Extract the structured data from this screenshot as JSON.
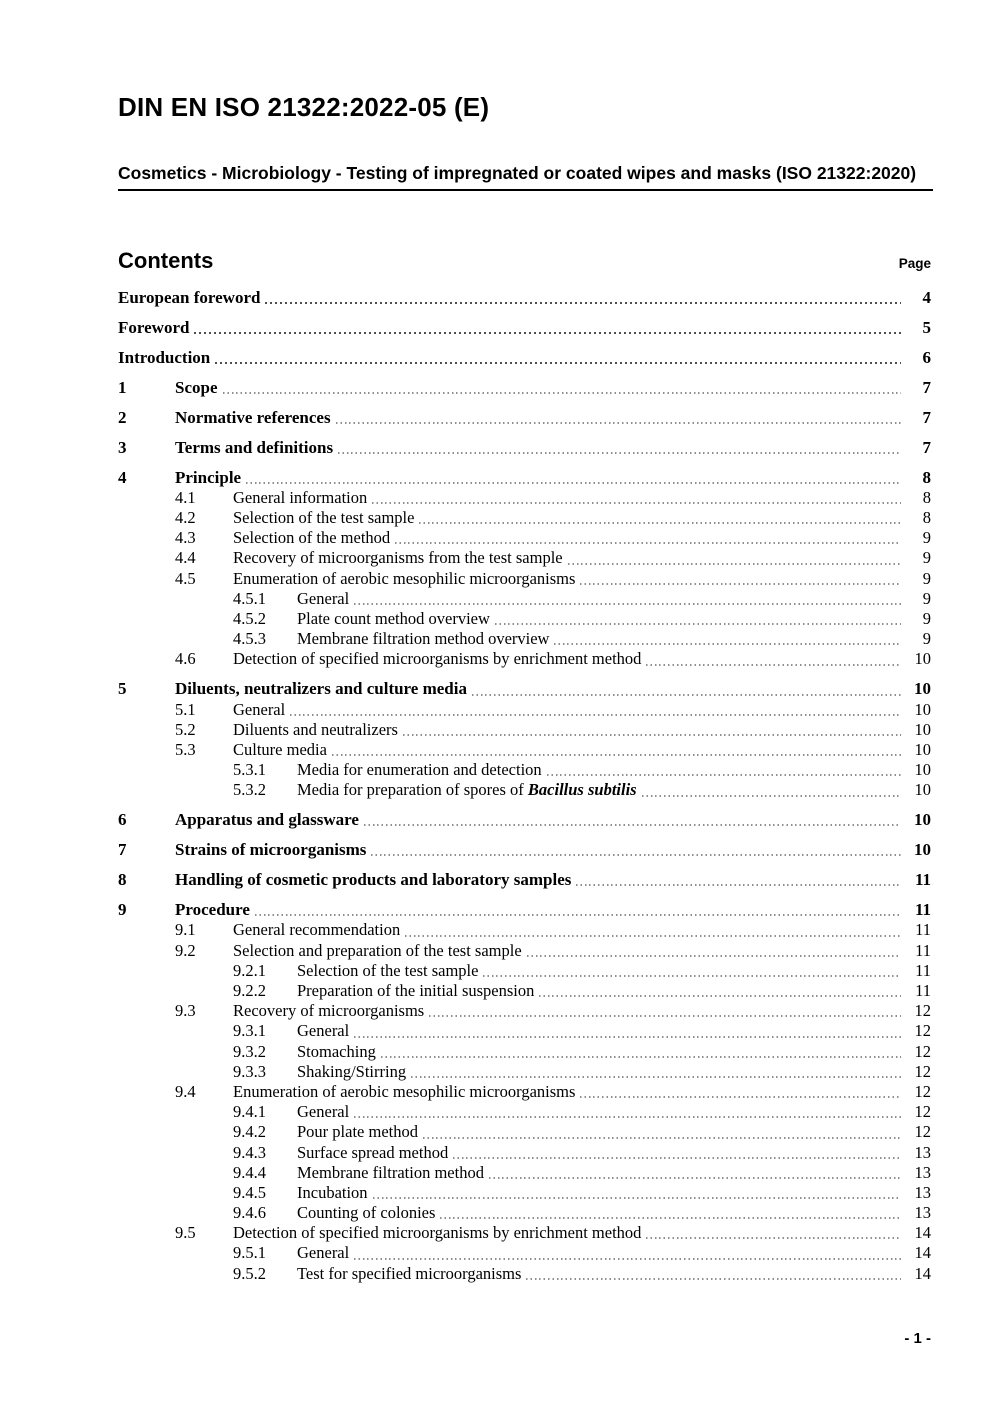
{
  "document": {
    "title": "DIN EN ISO 21322:2022-05 (E)",
    "subtitle": "Cosmetics - Microbiology - Testing of impregnated or coated wipes and masks (ISO 21322:2020)",
    "footer_page_number": "- 1 -"
  },
  "contents": {
    "heading": "Contents",
    "page_column_label": "Page",
    "entries": [
      {
        "style": "front",
        "level": 1,
        "num": "",
        "title": "European foreword",
        "page": "4"
      },
      {
        "style": "front",
        "level": 1,
        "num": "",
        "title": "Foreword",
        "page": "5"
      },
      {
        "style": "front",
        "level": 1,
        "num": "",
        "title": "Introduction",
        "page": "6"
      },
      {
        "style": "chapter",
        "level": 1,
        "num": "1",
        "title": "Scope",
        "page": "7"
      },
      {
        "style": "chapter",
        "level": 1,
        "num": "2",
        "title": "Normative references",
        "page": "7"
      },
      {
        "style": "chapter",
        "level": 1,
        "num": "3",
        "title": "Terms and definitions",
        "page": "7"
      },
      {
        "style": "chapter",
        "level": 1,
        "num": "4",
        "title": "Principle",
        "page": "8"
      },
      {
        "style": "sub",
        "level": 2,
        "num": "4.1",
        "title": "General information",
        "page": "8"
      },
      {
        "style": "sub",
        "level": 2,
        "num": "4.2",
        "title": "Selection of the test sample",
        "page": "8"
      },
      {
        "style": "sub",
        "level": 2,
        "num": "4.3",
        "title": "Selection of the method",
        "page": "9"
      },
      {
        "style": "sub",
        "level": 2,
        "num": "4.4",
        "title": "Recovery of microorganisms from the test sample",
        "page": "9"
      },
      {
        "style": "sub",
        "level": 2,
        "num": "4.5",
        "title": "Enumeration of aerobic mesophilic microorganisms",
        "page": "9"
      },
      {
        "style": "sub",
        "level": 3,
        "num": "4.5.1",
        "title": "General",
        "page": "9"
      },
      {
        "style": "sub",
        "level": 3,
        "num": "4.5.2",
        "title": "Plate count method overview",
        "page": "9"
      },
      {
        "style": "sub",
        "level": 3,
        "num": "4.5.3",
        "title": "Membrane filtration method overview",
        "page": "9"
      },
      {
        "style": "sub",
        "level": 2,
        "num": "4.6",
        "title": "Detection of specified microorganisms by enrichment method",
        "page": "10"
      },
      {
        "style": "chapter",
        "level": 1,
        "num": "5",
        "title": "Diluents, neutralizers and culture media",
        "page": "10"
      },
      {
        "style": "sub",
        "level": 2,
        "num": "5.1",
        "title": "General",
        "page": "10"
      },
      {
        "style": "sub",
        "level": 2,
        "num": "5.2",
        "title": "Diluents and neutralizers",
        "page": "10"
      },
      {
        "style": "sub",
        "level": 2,
        "num": "5.3",
        "title": "Culture media",
        "page": "10"
      },
      {
        "style": "sub",
        "level": 3,
        "num": "5.3.1",
        "title": "Media for enumeration and detection",
        "page": "10"
      },
      {
        "style": "sub",
        "level": 3,
        "num": "5.3.2",
        "title": "Media for preparation of spores of ",
        "em": "Bacillus subtilis",
        "page": "10"
      },
      {
        "style": "chapter",
        "level": 1,
        "num": "6",
        "title": "Apparatus and glassware",
        "page": "10"
      },
      {
        "style": "chapter",
        "level": 1,
        "num": "7",
        "title": "Strains of microorganisms",
        "page": "10"
      },
      {
        "style": "chapter",
        "level": 1,
        "num": "8",
        "title": "Handling of cosmetic products and laboratory samples",
        "page": "11"
      },
      {
        "style": "chapter",
        "level": 1,
        "num": "9",
        "title": "Procedure",
        "page": "11"
      },
      {
        "style": "sub",
        "level": 2,
        "num": "9.1",
        "title": "General recommendation",
        "page": "11"
      },
      {
        "style": "sub",
        "level": 2,
        "num": "9.2",
        "title": "Selection and preparation of the test sample",
        "page": "11"
      },
      {
        "style": "sub",
        "level": 3,
        "num": "9.2.1",
        "title": "Selection of the test sample",
        "page": "11"
      },
      {
        "style": "sub",
        "level": 3,
        "num": "9.2.2",
        "title": "Preparation of the initial suspension",
        "page": "11"
      },
      {
        "style": "sub",
        "level": 2,
        "num": "9.3",
        "title": "Recovery of microorganisms",
        "page": "12"
      },
      {
        "style": "sub",
        "level": 3,
        "num": "9.3.1",
        "title": "General",
        "page": "12"
      },
      {
        "style": "sub",
        "level": 3,
        "num": "9.3.2",
        "title": "Stomaching",
        "page": "12"
      },
      {
        "style": "sub",
        "level": 3,
        "num": "9.3.3",
        "title": "Shaking/Stirring",
        "page": "12"
      },
      {
        "style": "sub",
        "level": 2,
        "num": "9.4",
        "title": "Enumeration of aerobic mesophilic microorganisms",
        "page": "12"
      },
      {
        "style": "sub",
        "level": 3,
        "num": "9.4.1",
        "title": "General",
        "page": "12"
      },
      {
        "style": "sub",
        "level": 3,
        "num": "9.4.2",
        "title": "Pour plate method",
        "page": "12"
      },
      {
        "style": "sub",
        "level": 3,
        "num": "9.4.3",
        "title": "Surface spread method",
        "page": "13"
      },
      {
        "style": "sub",
        "level": 3,
        "num": "9.4.4",
        "title": "Membrane filtration method",
        "page": "13"
      },
      {
        "style": "sub",
        "level": 3,
        "num": "9.4.5",
        "title": "Incubation",
        "page": "13"
      },
      {
        "style": "sub",
        "level": 3,
        "num": "9.4.6",
        "title": "Counting of colonies",
        "page": "13"
      },
      {
        "style": "sub",
        "level": 2,
        "num": "9.5",
        "title": "Detection of specified microorganisms by enrichment method",
        "page": "14"
      },
      {
        "style": "sub",
        "level": 3,
        "num": "9.5.1",
        "title": "General",
        "page": "14"
      },
      {
        "style": "sub",
        "level": 3,
        "num": "9.5.2",
        "title": "Test for specified microorganisms",
        "page": "14"
      }
    ]
  }
}
